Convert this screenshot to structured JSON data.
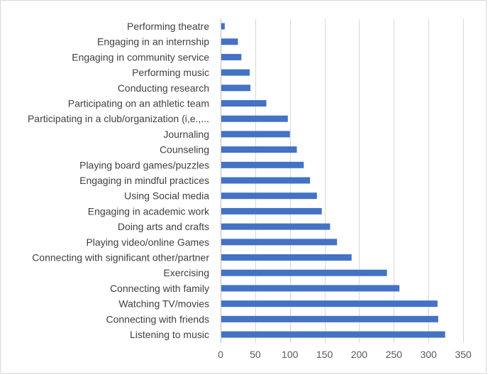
{
  "chart_data": {
    "type": "bar",
    "orientation": "horizontal",
    "title": "",
    "xlabel": "",
    "ylabel": "",
    "xlim": [
      0,
      350
    ],
    "x_ticks": [
      0,
      50,
      100,
      150,
      200,
      250,
      300,
      350
    ],
    "grid": true,
    "legend": "none",
    "bar_color": "#4472C4",
    "categories": [
      "Listening to music",
      "Connecting with friends",
      "Watching TV/movies",
      "Connecting with family",
      "Exercising",
      "Connecting with significant other/partner",
      "Playing video/online Games",
      "Doing arts and crafts",
      "Engaging in academic work",
      "Using Social media",
      "Engaging in mindful practices",
      "Playing board games/puzzles",
      "Counseling",
      "Journaling",
      "Participating in a club/organization (i,e.,...",
      "Participating on an athletic team",
      "Conducting research",
      "Performing music",
      "Engaging in community service",
      "Engaging in an internship",
      "Performing theatre"
    ],
    "values": [
      324,
      314,
      313,
      258,
      240,
      189,
      168,
      158,
      146,
      139,
      129,
      120,
      110,
      100,
      97,
      66,
      43,
      42,
      30,
      25,
      6
    ]
  }
}
